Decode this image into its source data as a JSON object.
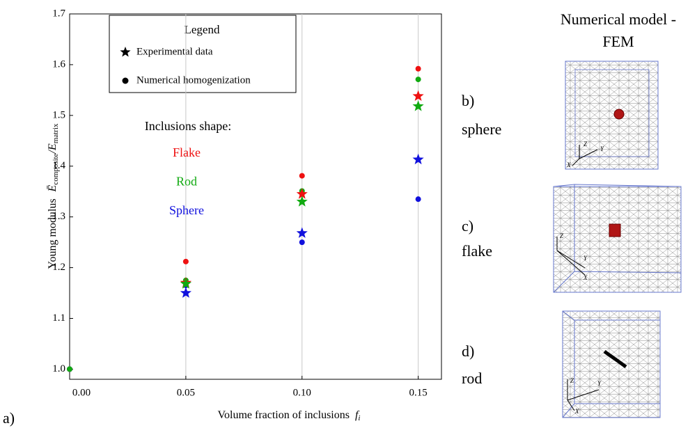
{
  "chart_data": {
    "type": "scatter",
    "ylabel": {
      "text": "Young modulus",
      "math": [
        "Ē",
        "composite",
        "/E",
        "matrix"
      ]
    },
    "xlabel": {
      "text": "Volume fraction of inclusions",
      "math": [
        "f",
        "i"
      ]
    },
    "x": [
      0,
      0.05,
      0.1,
      0.15
    ],
    "series": [
      {
        "name": "Flake",
        "color": "#ee1111",
        "values": [
          1.0,
          1.212,
          1.381,
          1.592
        ],
        "experimental": [
          null,
          1.17,
          1.345,
          1.538
        ]
      },
      {
        "name": "Sphere",
        "color": "#1111dd",
        "values": [
          1.0,
          1.165,
          1.25,
          1.335
        ],
        "experimental": [
          null,
          1.15,
          1.268,
          1.413
        ]
      },
      {
        "name": "Rod",
        "color": "#11aa11",
        "values": [
          1.0,
          1.175,
          1.351,
          1.571
        ],
        "experimental": [
          null,
          1.168,
          1.33,
          1.518
        ]
      }
    ],
    "legend": {
      "title": "Legend",
      "experimental": "Experimental data",
      "numerical": "Numerical homogenization"
    },
    "shape_title": "Inclusions shape:",
    "shape_order": [
      0,
      2,
      1
    ],
    "xlim": [
      0,
      0.16
    ],
    "ylim": [
      0.98,
      1.7
    ],
    "xticks": [
      {
        "value": 0,
        "label": "0.00"
      },
      0.05,
      {
        "value": 0.1,
        "label": "0.10"
      },
      0.15
    ],
    "yticks": [
      {
        "value": 1.0,
        "label": "1.0"
      },
      1.1,
      1.2,
      1.3,
      1.4,
      1.5,
      1.6,
      1.7
    ],
    "grid": "x",
    "panel_label": "a)"
  },
  "side": {
    "title": [
      "Numerical model -",
      "FEM"
    ],
    "panels": [
      {
        "letter": "b)",
        "name": "sphere"
      },
      {
        "letter": "c)",
        "name": "flake"
      },
      {
        "letter": "d)",
        "name": "rod"
      }
    ],
    "axes": [
      "X",
      "Y",
      "Z"
    ]
  }
}
